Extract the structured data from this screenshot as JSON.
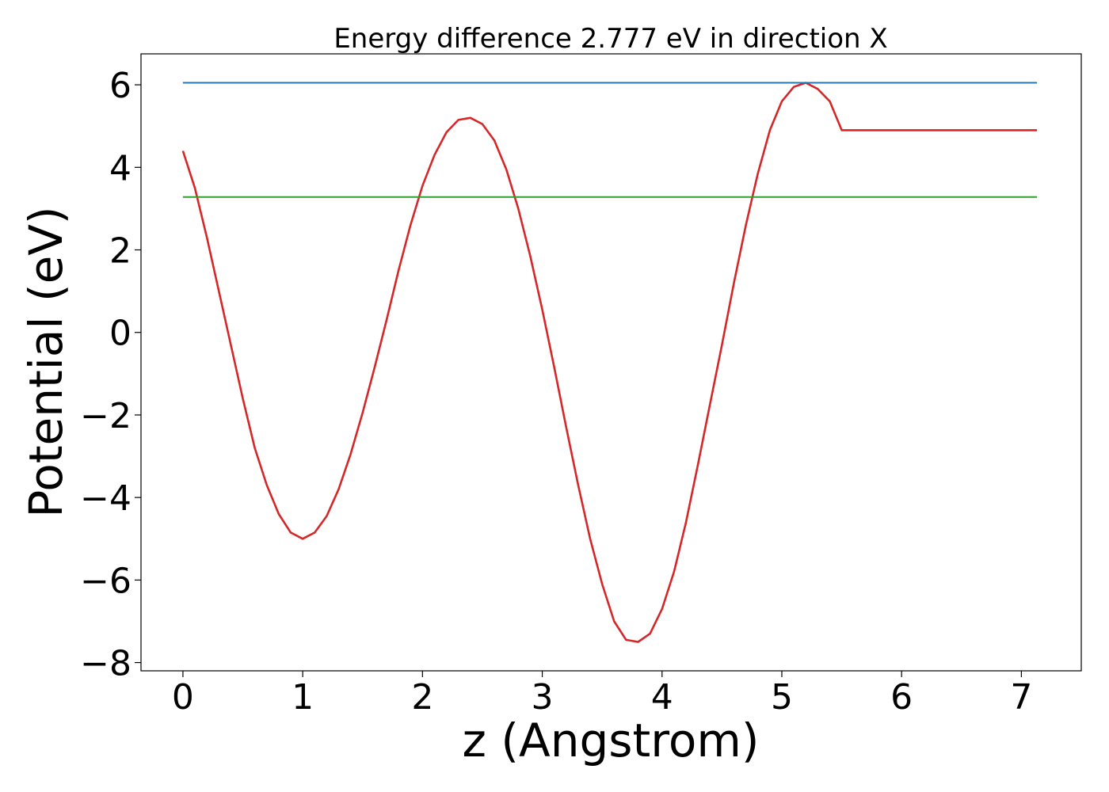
{
  "chart_data": {
    "type": "line",
    "title": "Energy difference 2.777 eV in direction X",
    "xlabel": "z (Angstrom)",
    "ylabel": "Potential (eV)",
    "xlim": [
      -0.35,
      7.5
    ],
    "ylim": [
      -8.2,
      6.75
    ],
    "xticks": [
      0,
      1,
      2,
      3,
      4,
      5,
      6,
      7
    ],
    "xtick_labels": [
      "0",
      "1",
      "2",
      "3",
      "4",
      "5",
      "6",
      "7"
    ],
    "yticks": [
      6,
      4,
      2,
      0,
      -2,
      -4,
      -6,
      -8
    ],
    "ytick_labels": [
      "6",
      "4",
      "2",
      "0",
      "−2",
      "−4",
      "−6",
      "−8"
    ],
    "grid": false,
    "legend": "none",
    "series": [
      {
        "color": "#d62728",
        "x": [
          0.0,
          0.1,
          0.2,
          0.3,
          0.4,
          0.5,
          0.6,
          0.7,
          0.8,
          0.9,
          1.0,
          1.1,
          1.2,
          1.3,
          1.4,
          1.5,
          1.6,
          1.7,
          1.8,
          1.9,
          2.0,
          2.1,
          2.2,
          2.3,
          2.4,
          2.5,
          2.6,
          2.7,
          2.8,
          2.9,
          3.0,
          3.1,
          3.2,
          3.3,
          3.4,
          3.5,
          3.6,
          3.7,
          3.8,
          3.9,
          4.0,
          4.1,
          4.2,
          4.3,
          4.4,
          4.5,
          4.6,
          4.7,
          4.8,
          4.9,
          5.0,
          5.1,
          5.2,
          5.3,
          5.4,
          5.5,
          5.6,
          5.7,
          5.8,
          5.9,
          6.0,
          6.1,
          6.2,
          6.3,
          6.4,
          6.5,
          6.6,
          6.7,
          6.8,
          6.9,
          7.0,
          7.13
        ],
        "y": [
          4.4,
          3.5,
          2.3,
          1.0,
          -0.3,
          -1.6,
          -2.8,
          -3.7,
          -4.4,
          -4.85,
          -5.0,
          -4.85,
          -4.45,
          -3.8,
          -2.95,
          -1.95,
          -0.85,
          0.3,
          1.5,
          2.6,
          3.55,
          4.3,
          4.85,
          5.15,
          5.2,
          5.05,
          4.65,
          3.95,
          3.0,
          1.85,
          0.55,
          -0.85,
          -2.3,
          -3.7,
          -5.0,
          -6.1,
          -7.0,
          -7.45,
          -7.5,
          -7.3,
          -6.7,
          -5.8,
          -4.6,
          -3.2,
          -1.75,
          -0.3,
          1.2,
          2.6,
          3.85,
          4.9,
          5.6,
          5.95,
          6.05,
          5.9,
          5.6,
          4.9,
          4.9,
          4.9,
          4.9,
          4.9,
          4.9,
          4.9,
          4.9,
          4.9,
          4.9,
          4.9,
          4.9,
          4.9,
          4.9,
          4.9,
          4.9,
          4.9
        ]
      },
      {
        "color": "#1f77b4",
        "x": [
          0.0,
          7.13
        ],
        "y": [
          6.05,
          6.05
        ]
      },
      {
        "color": "#2ca02c",
        "x": [
          0.0,
          7.13
        ],
        "y": [
          3.28,
          3.28
        ]
      }
    ]
  }
}
